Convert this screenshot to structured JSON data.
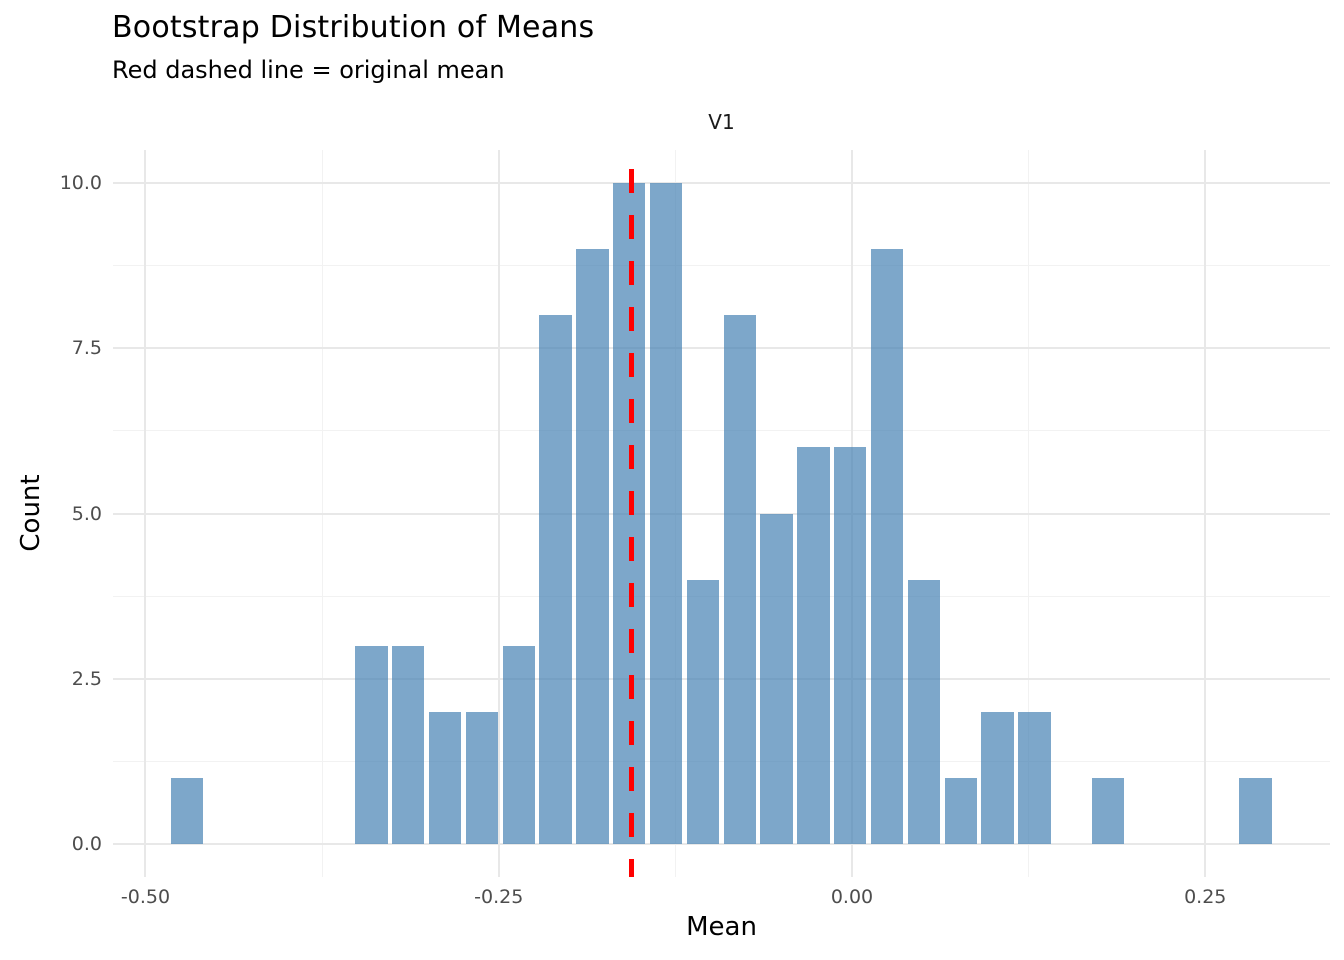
{
  "title": "Bootstrap Distribution of Means",
  "subtitle": "Red dashed line = original mean",
  "facet_label": "V1",
  "chart_data": {
    "type": "bar",
    "subtype": "histogram",
    "title": "Bootstrap Distribution of Means",
    "xlabel": "Mean",
    "ylabel": "Count",
    "xlim": [
      -0.523,
      0.3383
    ],
    "ylim": [
      -0.5,
      10.5
    ],
    "bin_start": -0.4835,
    "bin_width": 0.02607,
    "counts": [
      1,
      0,
      0,
      0,
      0,
      3,
      3,
      2,
      2,
      3,
      8,
      9,
      10,
      10,
      4,
      8,
      5,
      6,
      6,
      9,
      4,
      1,
      2,
      2,
      0,
      1,
      0,
      0,
      0,
      1
    ],
    "x_ticks": [
      {
        "value": -0.5,
        "label": "-0.50"
      },
      {
        "value": -0.25,
        "label": "-0.25"
      },
      {
        "value": 0.0,
        "label": "0.00"
      },
      {
        "value": 0.25,
        "label": "0.25"
      }
    ],
    "y_ticks": [
      {
        "value": 0,
        "label": "0.0"
      },
      {
        "value": 2.5,
        "label": "2.5"
      },
      {
        "value": 5,
        "label": "5.0"
      },
      {
        "value": 7.5,
        "label": "7.5"
      },
      {
        "value": 10,
        "label": "10.0"
      }
    ],
    "grid": "on",
    "vline": {
      "value": -0.156,
      "color": "#ff0000",
      "linetype": "dashed",
      "meaning": "original mean"
    }
  },
  "colors": {
    "bar_fill": "#4682b4",
    "bar_alpha": 0.7,
    "bar_fill_rendered": "#7da7ca",
    "vline": "#ff0000",
    "grid_major": "#e8e8e8",
    "grid_minor": "#f2f2f2",
    "tick_text": "#4d4d4d",
    "text": "#000000",
    "facet_text": "#1a1a1a",
    "background": "#ffffff"
  }
}
